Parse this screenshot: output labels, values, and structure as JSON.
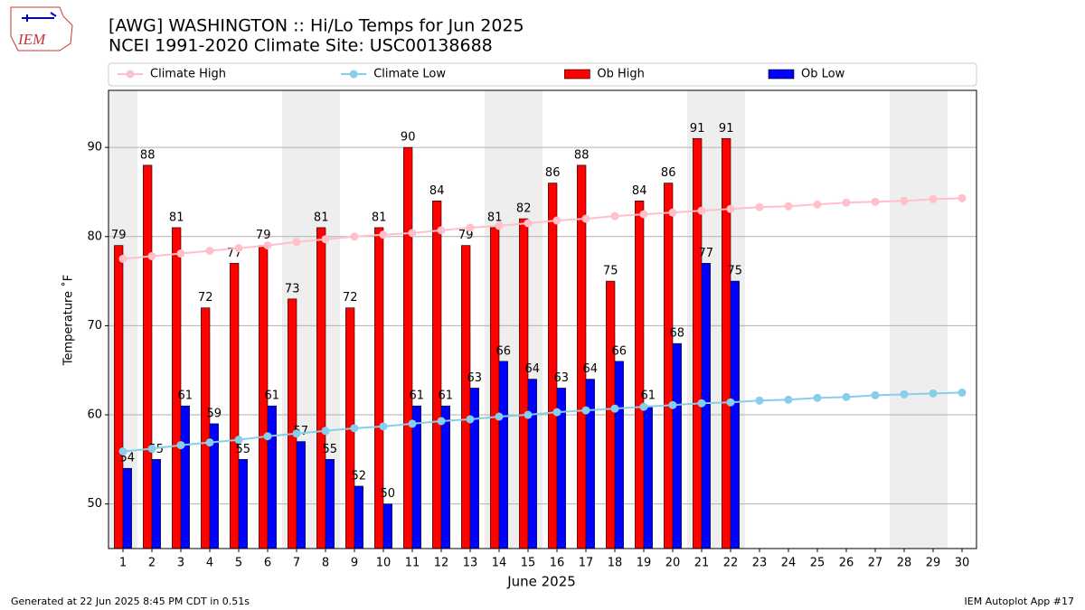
{
  "chart_data": {
    "type": "bar",
    "title": "[AWG] WASHINGTON :: Hi/Lo Temps for Jun 2025",
    "subtitle": "NCEI 1991-2020 Climate Site: USC00138688",
    "x_label": "June 2025",
    "y_label": "Temperature ˚F",
    "x": [
      1,
      2,
      3,
      4,
      5,
      6,
      7,
      8,
      9,
      10,
      11,
      12,
      13,
      14,
      15,
      16,
      17,
      18,
      19,
      20,
      21,
      22,
      23,
      24,
      25,
      26,
      27,
      28,
      29,
      30
    ],
    "xlim": [
      0.5,
      30.5
    ],
    "xticks": [
      1,
      2,
      3,
      4,
      5,
      6,
      7,
      8,
      9,
      10,
      11,
      12,
      13,
      14,
      15,
      16,
      17,
      18,
      19,
      20,
      21,
      22,
      23,
      24,
      25,
      26,
      27,
      28,
      29,
      30
    ],
    "ylim": [
      45,
      96.4
    ],
    "yticks": [
      50,
      60,
      70,
      80,
      90
    ],
    "grid": true,
    "legend": "top",
    "weekend_days": [
      1,
      7,
      8,
      14,
      15,
      21,
      22,
      28,
      29
    ],
    "series": [
      {
        "name": "Climate High",
        "type": "line",
        "color": "#ffc0cb",
        "values": [
          77.5,
          77.8,
          78.1,
          78.4,
          78.7,
          79.0,
          79.4,
          79.7,
          80.0,
          80.2,
          80.4,
          80.7,
          81.0,
          81.2,
          81.5,
          81.8,
          82.0,
          82.3,
          82.5,
          82.7,
          82.9,
          83.1,
          83.3,
          83.4,
          83.6,
          83.8,
          83.9,
          84.0,
          84.2,
          84.3
        ]
      },
      {
        "name": "Climate Low",
        "type": "line",
        "color": "#87ceeb",
        "values": [
          55.9,
          56.2,
          56.6,
          56.9,
          57.2,
          57.6,
          57.9,
          58.2,
          58.5,
          58.7,
          59.0,
          59.3,
          59.5,
          59.8,
          60.0,
          60.3,
          60.5,
          60.7,
          60.9,
          61.1,
          61.3,
          61.4,
          61.6,
          61.7,
          61.9,
          62.0,
          62.2,
          62.3,
          62.4,
          62.5
        ]
      },
      {
        "name": "Ob High",
        "type": "bar",
        "color": "#ff0000",
        "values": [
          79,
          88,
          81,
          72,
          77,
          79,
          73,
          81,
          72,
          81,
          90,
          84,
          79,
          81,
          82,
          86,
          88,
          75,
          84,
          86,
          91,
          91,
          null,
          null,
          null,
          null,
          null,
          null,
          null,
          null
        ]
      },
      {
        "name": "Ob Low",
        "type": "bar",
        "color": "#0000ff",
        "values": [
          54,
          55,
          61,
          59,
          55,
          61,
          57,
          55,
          52,
          50,
          61,
          61,
          63,
          66,
          64,
          63,
          64,
          66,
          61,
          68,
          77,
          75,
          null,
          null,
          null,
          null,
          null,
          null,
          null,
          null
        ]
      }
    ]
  },
  "logo": "IEM",
  "footer": {
    "left": "Generated at 22 Jun 2025 8:45 PM CDT in 0.51s",
    "right": "IEM Autoplot App #17"
  }
}
